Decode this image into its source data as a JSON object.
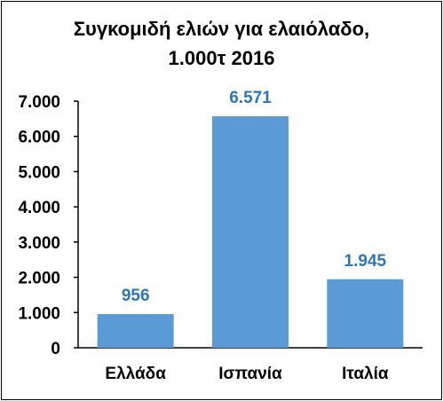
{
  "chart_data": {
    "type": "bar",
    "title_line1": "Συγκομιδή ελιών για ελαιόλαδο,",
    "title_line2": "1.000τ 2016",
    "categories": [
      "Ελλάδα",
      "Ισπανία",
      "Ιταλία"
    ],
    "values": [
      956,
      6571,
      1945
    ],
    "data_labels": [
      "956",
      "6.571",
      "1.945"
    ],
    "ylim": [
      0,
      7000
    ],
    "yticks": [
      0,
      1000,
      2000,
      3000,
      4000,
      5000,
      6000,
      7000
    ],
    "ytick_labels": [
      "0",
      "1.000",
      "2.000",
      "3.000",
      "4.000",
      "5.000",
      "6.000",
      "7.000"
    ],
    "xlabel": "",
    "ylabel": "",
    "grid": false,
    "legend": "none",
    "bar_color": "#5b9bd5",
    "data_label_color": "#2e75b6"
  }
}
